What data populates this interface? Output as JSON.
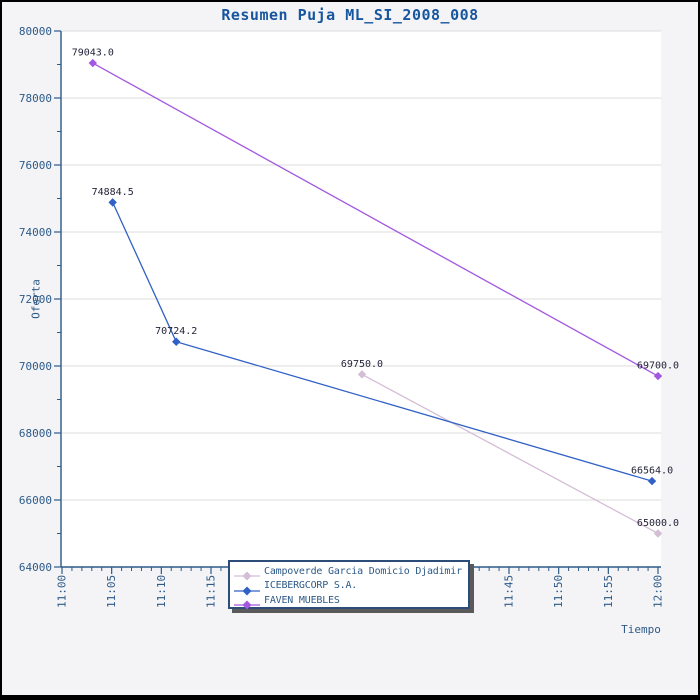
{
  "title": "Resumen Puja ML_SI_2008_008",
  "x_axis_title": "Tiempo",
  "y_axis_title": "Oferta",
  "colors": {
    "background": "#f4f4f6",
    "plot_background": "#ffffff",
    "grid": "#dcdcdc",
    "axis": "#2d5a88",
    "tick_text": "#2d5a88",
    "title_text": "#17569e",
    "data_label_text": "#24243a",
    "legend_border": "#2b4d77",
    "legend_shadow": "#5a5a5a",
    "frame": "#000000"
  },
  "chart_data": {
    "type": "line",
    "title": "Resumen Puja ML_SI_2008_008",
    "xlabel": "Tiempo",
    "ylabel": "Oferta",
    "ylim": [
      64000,
      80000
    ],
    "y_ticks": [
      64000,
      66000,
      68000,
      70000,
      72000,
      74000,
      76000,
      78000,
      80000
    ],
    "y_minor_step": 1000,
    "x_tick_labels": [
      "11:00",
      "11:05",
      "11:10",
      "11:15",
      "11:20",
      "11:25",
      "11:30",
      "11:35",
      "11:40",
      "11:45",
      "11:50",
      "11:55",
      "12:00"
    ],
    "x_major_step_minutes": 5,
    "x_minor_step_minutes": 1,
    "grid": "horizontal-only",
    "legend_position": "bottom-center-overlay",
    "marker": "diamond",
    "series": [
      {
        "name": "Campoverde Garcia Domicio Djadimir",
        "color": "#d4bed6",
        "points": [
          {
            "time": "11:30",
            "minutes": 30.2,
            "value": 69750.0,
            "label": "69750.0"
          },
          {
            "time": "12:00",
            "minutes": 60.0,
            "value": 65000.0,
            "label": "65000.0"
          }
        ]
      },
      {
        "name": "ICEBERGCORP S.A.",
        "color": "#3161c6",
        "points": [
          {
            "time": "11:05",
            "minutes": 5.1,
            "value": 74884.5,
            "label": "74884.5"
          },
          {
            "time": "11:11",
            "minutes": 11.5,
            "value": 70724.2,
            "label": "70724.2"
          },
          {
            "time": "11:59",
            "minutes": 59.4,
            "value": 66564.0,
            "label": "66564.0"
          }
        ]
      },
      {
        "name": "FAVEN MUEBLES",
        "color": "#a258e0",
        "points": [
          {
            "time": "11:03",
            "minutes": 3.1,
            "value": 79043.0,
            "label": "79043.0"
          },
          {
            "time": "12:00",
            "minutes": 60.0,
            "value": 69700.0,
            "label": "69700.0"
          }
        ]
      }
    ]
  }
}
